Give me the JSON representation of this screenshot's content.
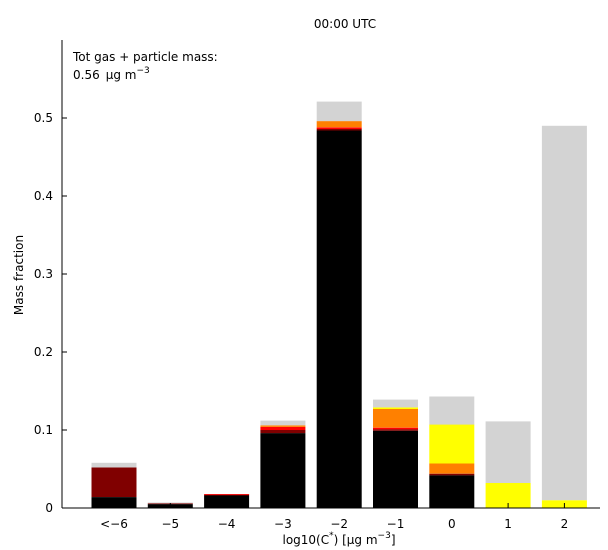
{
  "chart_data": {
    "type": "bar",
    "stacked": true,
    "title": "00:00 UTC",
    "annotation_line1": "Tot gas + particle mass:",
    "annotation_value": "0.56",
    "annotation_unit": "μg m",
    "annotation_exp": "−3",
    "ylabel": "Mass fraction",
    "xlabel_main": "log10(C",
    "xlabel_sup1": "*",
    "xlabel_mid": ") [μg m",
    "xlabel_sup2": "−3",
    "xlabel_end": "]",
    "categories": [
      "<−6",
      "−5",
      "−4",
      "−3",
      "−2",
      "−1",
      "0",
      "1",
      "2"
    ],
    "ylim": [
      0,
      0.6
    ],
    "yticks": [
      "0",
      "0.1",
      "0.2",
      "0.3",
      "0.4",
      "0.5"
    ],
    "series_colors": [
      "#000000",
      "#800000",
      "#ff0000",
      "#ff8000",
      "#ffff00",
      "#d3d3d3"
    ],
    "stacks": [
      [
        0.014,
        0.038,
        0.0,
        0.0,
        0.0,
        0.006
      ],
      [
        0.005,
        0.001,
        0.0,
        0.0,
        0.0,
        0.001
      ],
      [
        0.016,
        0.001,
        0.001,
        0.0,
        0.0,
        0.0
      ],
      [
        0.096,
        0.004,
        0.004,
        0.002,
        0.0,
        0.006
      ],
      [
        0.484,
        0.002,
        0.002,
        0.008,
        0.0,
        0.025
      ],
      [
        0.099,
        0.002,
        0.002,
        0.024,
        0.002,
        0.01
      ],
      [
        0.042,
        0.002,
        0.0,
        0.013,
        0.05,
        0.036
      ],
      [
        0.0,
        0.0,
        0.0,
        0.0,
        0.032,
        0.079
      ],
      [
        0.0,
        0.0,
        0.0,
        0.0,
        0.01,
        0.48
      ]
    ]
  }
}
